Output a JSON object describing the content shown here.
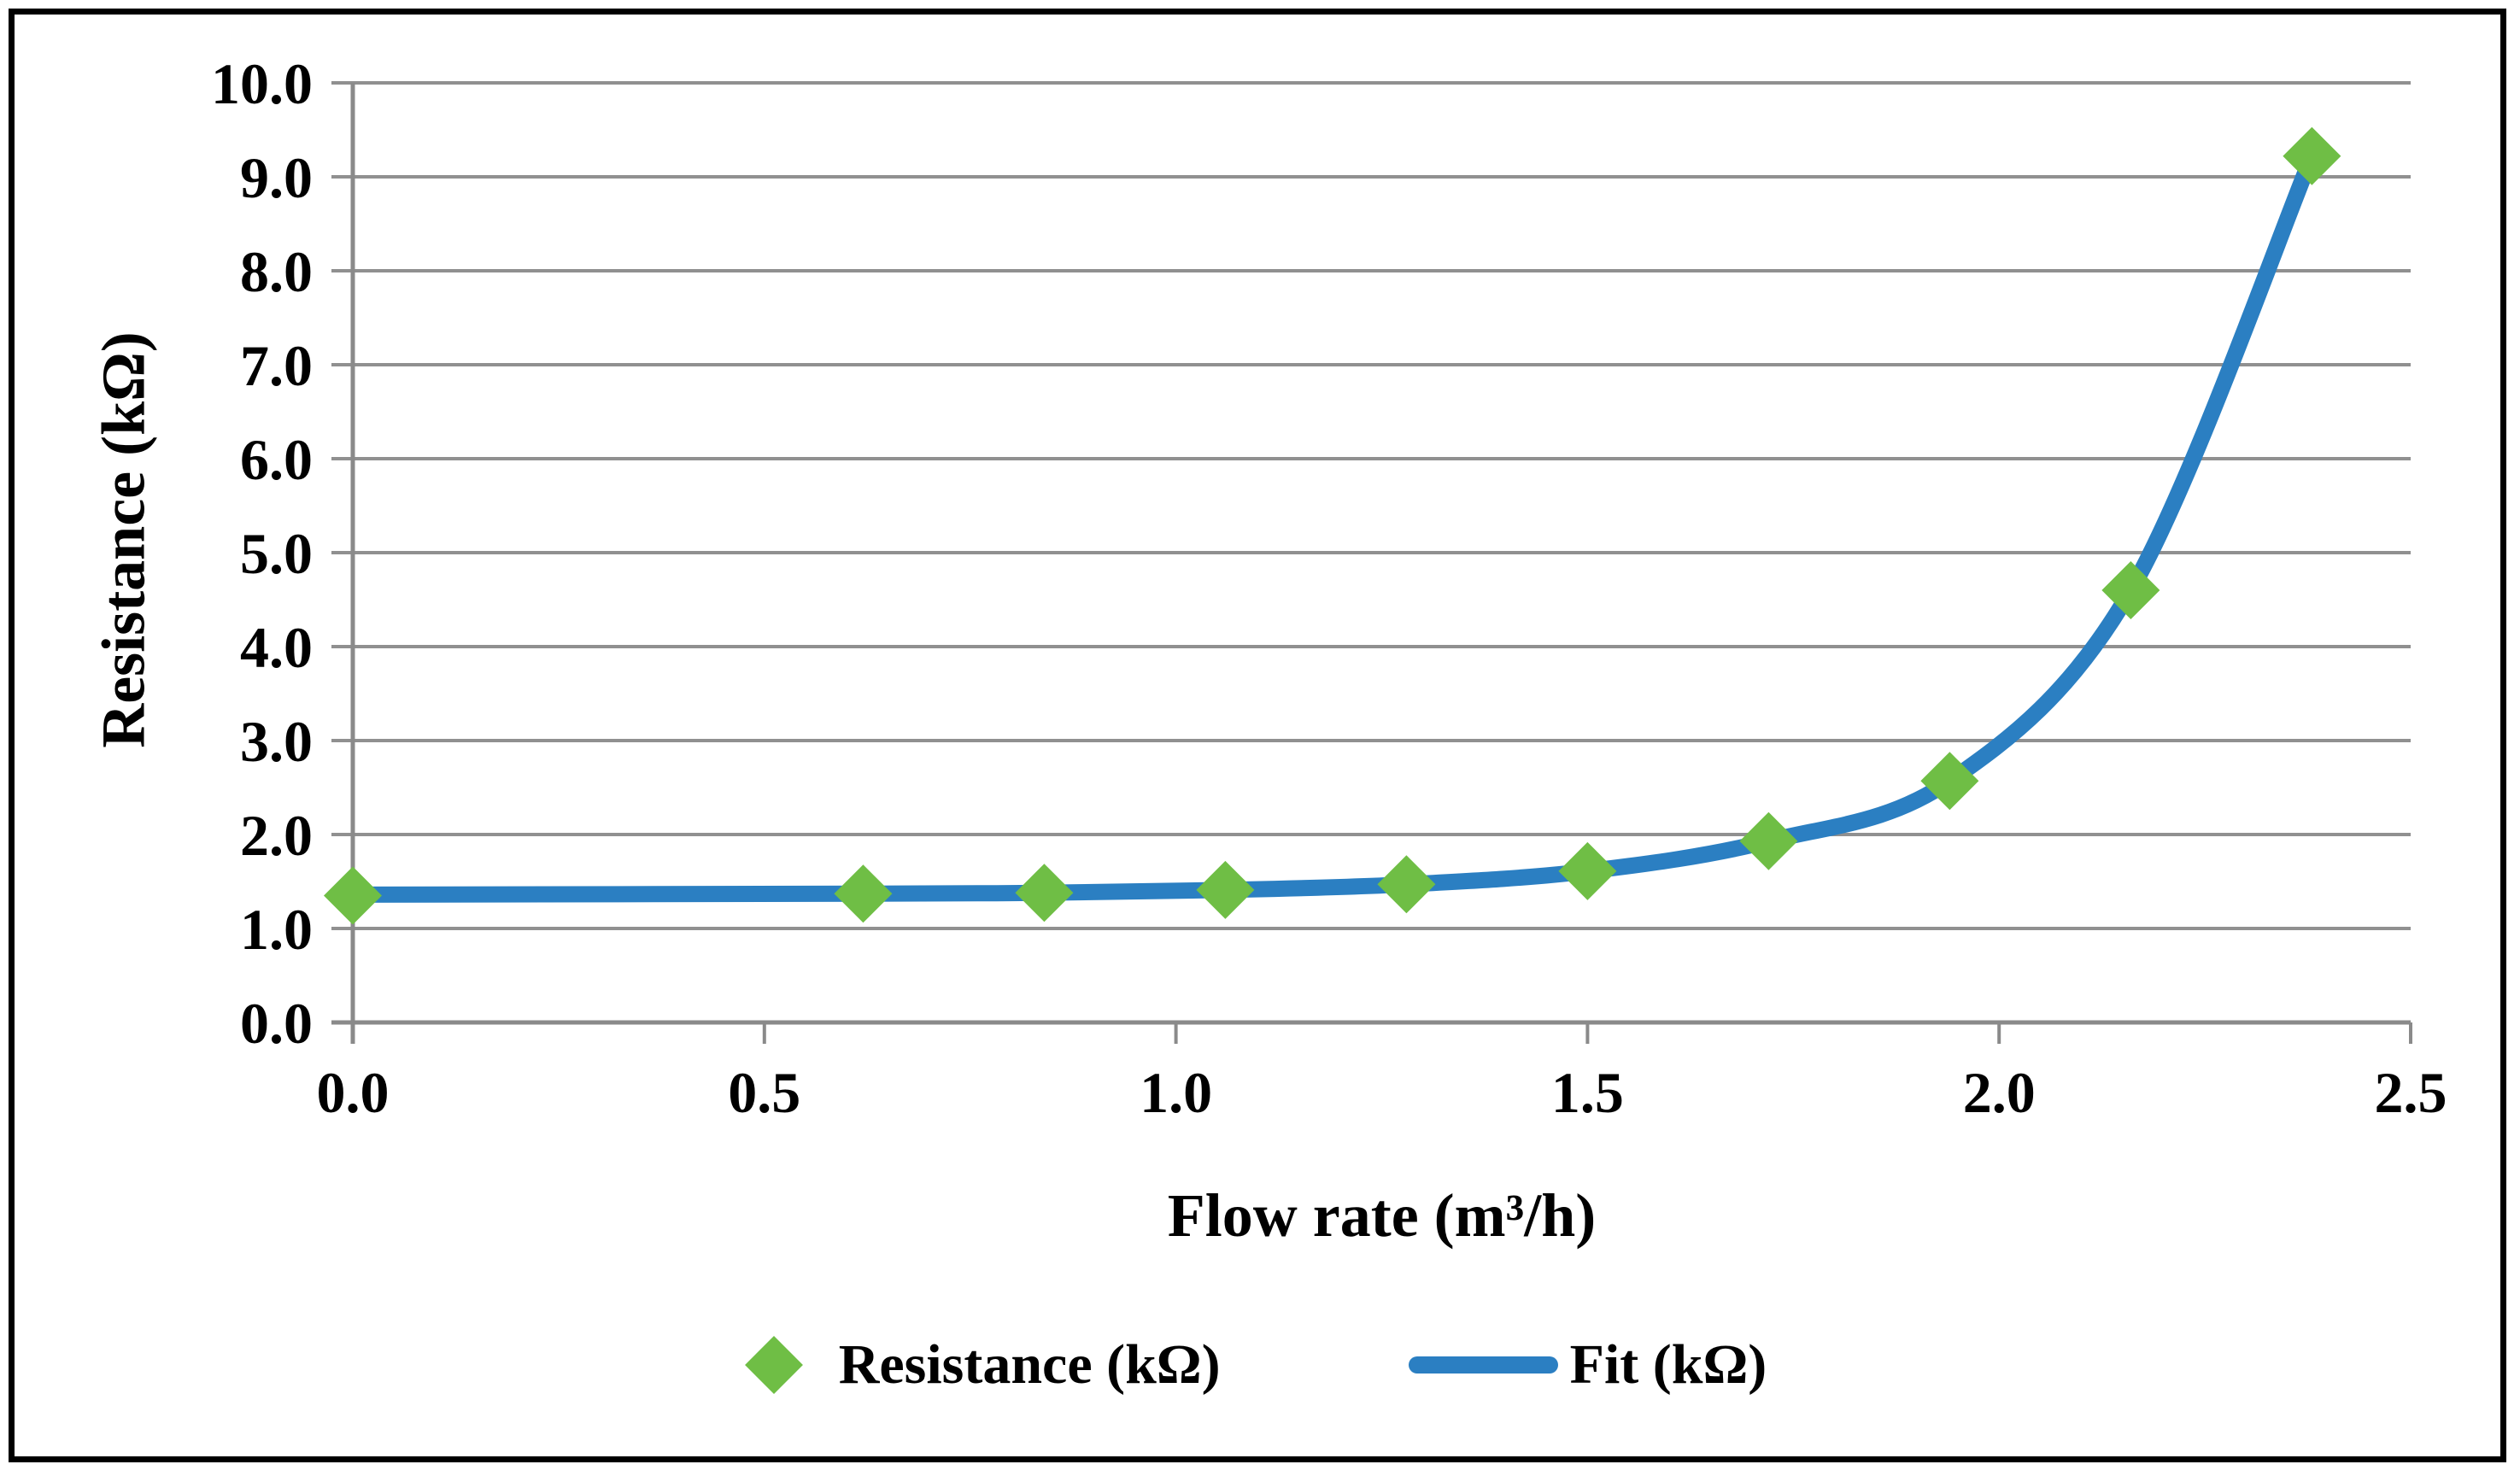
{
  "chart_data": {
    "type": "scatter",
    "title": "",
    "xlabel": "Flow rate (m³/h)",
    "ylabel": "Resistance (kΩ)",
    "xlim": [
      0.0,
      2.5
    ],
    "ylim": [
      0.0,
      10.0
    ],
    "x_tick_labels": [
      "0.0",
      "0.5",
      "1.0",
      "1.5",
      "2.0",
      "2.5"
    ],
    "y_tick_labels": [
      "0.0",
      "1.0",
      "2.0",
      "3.0",
      "4.0",
      "5.0",
      "6.0",
      "7.0",
      "8.0",
      "9.0",
      "10.0"
    ],
    "grid": "horizontal-only",
    "legend_position": "bottom-center",
    "series": [
      {
        "name": "Resistance (kΩ)",
        "type": "scatter",
        "marker": "diamond",
        "color": "#6FBE45",
        "x": [
          0.0,
          0.62,
          0.84,
          1.06,
          1.28,
          1.5,
          1.72,
          1.94,
          2.16,
          2.38
        ],
        "y": [
          1.35,
          1.37,
          1.38,
          1.41,
          1.47,
          1.61,
          1.93,
          2.57,
          4.6,
          9.22
        ]
      },
      {
        "name": "Fit (kΩ)",
        "type": "line",
        "color": "#2B7FC2",
        "x": [
          0.0,
          0.62,
          0.84,
          1.06,
          1.28,
          1.5,
          1.72,
          1.94,
          2.16,
          2.38
        ],
        "y": [
          1.36,
          1.37,
          1.38,
          1.41,
          1.47,
          1.61,
          1.93,
          2.57,
          4.6,
          9.22
        ]
      }
    ]
  },
  "colors": {
    "background": "#FFFFFF",
    "frame": "#000000",
    "gridline": "#909090",
    "axis": "#8A8A8A",
    "text": "#000000"
  }
}
